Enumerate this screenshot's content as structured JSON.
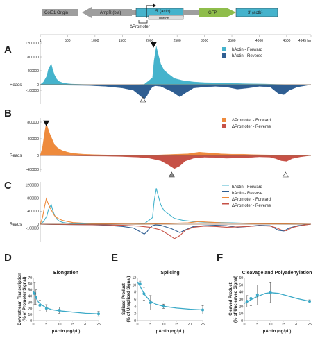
{
  "colors": {
    "actin_forward": "#45b3cc",
    "actin_reverse": "#2f5e92",
    "promoter_forward": "#ee8a3c",
    "promoter_reverse": "#c65146",
    "gfp_box": "#8fbd4b",
    "actb_box": "#45b3cc",
    "gray_box": "#9e9e9e",
    "line_fit": "#3aa9c7"
  },
  "map": {
    "labels": [
      "ColE1 Origin",
      "AmpR (bla)",
      "5' (actb)",
      "1Intron",
      "GFP",
      "3' (actb)",
      "ΔPromoter"
    ],
    "ticks": [
      "1",
      "500",
      "1000",
      "1500",
      "2000",
      "2500",
      "3000",
      "3500",
      "4000",
      "4500",
      "4945 bp"
    ]
  },
  "panels": {
    "A": {
      "label": "A",
      "ylabel": "Reads",
      "yticks": [
        "1200000",
        "800000",
        "400000",
        "0",
        "-100000"
      ],
      "legend": [
        "bActin - Forward",
        "bActin - Reverse"
      ]
    },
    "B": {
      "label": "B",
      "ylabel": "Reads",
      "yticks": [
        "800000",
        "400000",
        "0",
        "-400000"
      ],
      "legend": [
        "ΔPromoter - Forward",
        "ΔPromoter - Reverse"
      ]
    },
    "C": {
      "label": "C",
      "ylabel": "Reads",
      "yticks": [
        "1200000",
        "800000",
        "400000",
        "0",
        "-100000"
      ],
      "legend": [
        "bActin - Forward",
        "bActin - Reverse",
        "ΔPromoter - Forward",
        "ΔPromoter - Reverse"
      ]
    }
  },
  "small": {
    "D": {
      "label": "D",
      "title": "Elongation",
      "ylabel": [
        "Downstream Transcription",
        "(% of Promoter Signal)"
      ],
      "xlabel": "pActin (ng/μL)",
      "yticks": [
        "70",
        "60",
        "50",
        "40",
        "30",
        "20",
        "10",
        "0"
      ],
      "xticks": [
        "0",
        "5",
        "10",
        "15",
        "20",
        "25"
      ]
    },
    "E": {
      "label": "E",
      "title": "Splicing",
      "ylabel": [
        "Spliced Product",
        "(% of Unspliced Signal)"
      ],
      "xlabel": "pActin (ng/μL)",
      "yticks": [
        "12",
        "10",
        "8",
        "6",
        "4",
        "2",
        "0"
      ],
      "xticks": [
        "0",
        "5",
        "10",
        "15",
        "20",
        "25"
      ]
    },
    "F": {
      "label": "F",
      "title": "Cleavage and Polyadenylation",
      "ylabel": [
        "Cleaved Product",
        "(% of Uncleaved Signal)"
      ],
      "xlabel": "pActin (ng/μL)",
      "yticks": [
        "60",
        "50",
        "40",
        "30",
        "20",
        "10",
        "0"
      ],
      "xticks": [
        "0",
        "5",
        "10",
        "15",
        "20",
        "25"
      ]
    }
  },
  "chart_data": [
    {
      "type": "line",
      "ylabel": "Reads",
      "xlabel": "",
      "x_range_bp": [
        1,
        4945
      ],
      "panel": "A",
      "series": [
        {
          "name": "bActin - Forward",
          "x": [
            0,
            60,
            120,
            150,
            200,
            230,
            260,
            300,
            350,
            420,
            500,
            560,
            650,
            800,
            950,
            1100,
            1300,
            1500,
            1700,
            1900,
            2050,
            2080,
            2120,
            2150,
            2200,
            2260,
            2350,
            2450,
            2600,
            2800,
            3000,
            3300,
            3500,
            3700,
            3900,
            4100,
            4300,
            4500,
            4700,
            4945
          ],
          "y": [
            0,
            80000,
            250000,
            450000,
            600000,
            420000,
            280000,
            160000,
            90000,
            50000,
            30000,
            20000,
            15000,
            8000,
            4000,
            2000,
            1000,
            0,
            0,
            10000,
            200000,
            700000,
            1100000,
            900000,
            600000,
            420000,
            300000,
            180000,
            120000,
            80000,
            60000,
            50000,
            40000,
            30000,
            25000,
            20000,
            10000,
            5000,
            2000,
            0
          ]
        },
        {
          "name": "bActin - Reverse",
          "x": [
            0,
            200,
            500,
            900,
            1200,
            1500,
            1700,
            1800,
            1900,
            1950,
            2000,
            2050,
            2100,
            2200,
            2400,
            2550,
            2650,
            2800,
            3000,
            3200,
            3400,
            3600,
            3800,
            4000,
            4200,
            4350,
            4450,
            4550,
            4700,
            4945
          ],
          "y": [
            0,
            -5000,
            -10000,
            -15000,
            -30000,
            -60000,
            -100000,
            -180000,
            -260000,
            -200000,
            -100000,
            -40000,
            -20000,
            -30000,
            -120000,
            -220000,
            -150000,
            -60000,
            -40000,
            -30000,
            -40000,
            -80000,
            -60000,
            -30000,
            -40000,
            -160000,
            -180000,
            -100000,
            -40000,
            0
          ]
        }
      ],
      "markers": [
        {
          "type": "filled-triangle",
          "x_bp": 2070
        },
        {
          "type": "open-triangle",
          "x_bp": 1875
        }
      ]
    },
    {
      "type": "line",
      "ylabel": "Reads",
      "x_range_bp": [
        1,
        4945
      ],
      "panel": "B",
      "series": [
        {
          "name": "ΔPromoter - Forward",
          "x": [
            0,
            40,
            80,
            110,
            140,
            180,
            220,
            260,
            320,
            400,
            500,
            600,
            800,
            1000,
            1300,
            1600,
            1900,
            2100,
            2300,
            2500,
            2700,
            2900,
            3100,
            3300,
            3500,
            3700,
            3900,
            4100,
            4300,
            4500,
            4700,
            4945
          ],
          "y": [
            0,
            200000,
            550000,
            780000,
            650000,
            500000,
            380000,
            260000,
            180000,
            120000,
            80000,
            50000,
            30000,
            20000,
            10000,
            5000,
            5000,
            10000,
            20000,
            30000,
            40000,
            80000,
            60000,
            40000,
            30000,
            30000,
            20000,
            15000,
            10000,
            8000,
            4000,
            0
          ]
        },
        {
          "name": "ΔPromoter - Reverse",
          "x": [
            0,
            300,
            600,
            900,
            1200,
            1500,
            1800,
            2000,
            2200,
            2350,
            2450,
            2550,
            2650,
            2800,
            3000,
            3200,
            3400,
            3600,
            3800,
            4000,
            4200,
            4300,
            4400,
            4500,
            4600,
            4750,
            4945
          ],
          "y": [
            0,
            -5000,
            -10000,
            -15000,
            -20000,
            -30000,
            -50000,
            -80000,
            -150000,
            -280000,
            -380000,
            -300000,
            -160000,
            -80000,
            -50000,
            -60000,
            -80000,
            -70000,
            -60000,
            -40000,
            -50000,
            -90000,
            -150000,
            -170000,
            -90000,
            -40000,
            0
          ]
        }
      ],
      "markers": [
        {
          "type": "filled-triangle",
          "x_bp": 110
        },
        {
          "type": "gray-triangle",
          "x_bp": 2400
        },
        {
          "type": "open-triangle",
          "x_bp": 4480
        }
      ]
    },
    {
      "type": "line",
      "ylabel": "Reads",
      "x_range_bp": [
        1,
        4945
      ],
      "panel": "C",
      "series": [
        {
          "name": "bActin - Forward",
          "x": [
            0,
            60,
            120,
            150,
            200,
            230,
            260,
            300,
            350,
            420,
            500,
            560,
            650,
            800,
            950,
            1100,
            1300,
            1500,
            1700,
            1900,
            2050,
            2080,
            2120,
            2150,
            2200,
            2260,
            2350,
            2450,
            2600,
            2800,
            3000,
            3300,
            3500,
            3700,
            3900,
            4100,
            4300,
            4500,
            4700,
            4945
          ],
          "y": [
            0,
            80000,
            250000,
            450000,
            600000,
            420000,
            280000,
            160000,
            90000,
            50000,
            30000,
            20000,
            15000,
            8000,
            4000,
            2000,
            1000,
            0,
            0,
            10000,
            200000,
            700000,
            1100000,
            900000,
            600000,
            420000,
            300000,
            180000,
            120000,
            80000,
            60000,
            50000,
            40000,
            30000,
            25000,
            20000,
            10000,
            5000,
            2000,
            0
          ]
        },
        {
          "name": "bActin - Reverse",
          "x": [
            0,
            200,
            500,
            900,
            1200,
            1500,
            1700,
            1800,
            1900,
            1950,
            2000,
            2050,
            2100,
            2200,
            2400,
            2550,
            2650,
            2800,
            3000,
            3200,
            3400,
            3600,
            3800,
            4000,
            4200,
            4350,
            4450,
            4550,
            4700,
            4945
          ],
          "y": [
            0,
            -5000,
            -10000,
            -15000,
            -30000,
            -60000,
            -100000,
            -180000,
            -260000,
            -200000,
            -100000,
            -40000,
            -20000,
            -30000,
            -120000,
            -220000,
            -150000,
            -60000,
            -40000,
            -30000,
            -40000,
            -80000,
            -60000,
            -30000,
            -40000,
            -160000,
            -180000,
            -100000,
            -40000,
            0
          ]
        },
        {
          "name": "ΔPromoter - Forward",
          "x": [
            0,
            40,
            80,
            110,
            140,
            180,
            220,
            260,
            320,
            400,
            500,
            600,
            800,
            1000,
            1300,
            1600,
            1900,
            2100,
            2300,
            2500,
            2700,
            2900,
            3100,
            3300,
            3500,
            3700,
            3900,
            4100,
            4300,
            4500,
            4700,
            4945
          ],
          "y": [
            0,
            200000,
            550000,
            780000,
            650000,
            500000,
            380000,
            260000,
            180000,
            120000,
            80000,
            50000,
            30000,
            20000,
            10000,
            5000,
            5000,
            10000,
            20000,
            30000,
            40000,
            80000,
            60000,
            40000,
            30000,
            30000,
            20000,
            15000,
            10000,
            8000,
            4000,
            0
          ]
        },
        {
          "name": "ΔPromoter - Reverse",
          "x": [
            0,
            300,
            600,
            900,
            1200,
            1500,
            1800,
            2000,
            2200,
            2350,
            2450,
            2550,
            2650,
            2800,
            3000,
            3200,
            3400,
            3600,
            3800,
            4000,
            4200,
            4300,
            4400,
            4500,
            4600,
            4750,
            4945
          ],
          "y": [
            0,
            -5000,
            -10000,
            -15000,
            -20000,
            -30000,
            -50000,
            -80000,
            -150000,
            -280000,
            -380000,
            -300000,
            -160000,
            -80000,
            -50000,
            -60000,
            -80000,
            -70000,
            -60000,
            -40000,
            -50000,
            -90000,
            -150000,
            -170000,
            -90000,
            -40000,
            0
          ]
        }
      ]
    },
    {
      "type": "scatter",
      "panel": "D",
      "title": "Elongation",
      "xlabel": "pActin (ng/μL)",
      "ylabel": "Downstream Transcription (% of Promoter Signal)",
      "xlim": [
        0,
        25
      ],
      "ylim": [
        0,
        70
      ],
      "points": [
        {
          "x": 0.5,
          "y": 44,
          "err": 18
        },
        {
          "x": 1,
          "y": 38,
          "err": 12
        },
        {
          "x": 2.5,
          "y": 25,
          "err": 8
        },
        {
          "x": 5,
          "y": 20,
          "err": 6
        },
        {
          "x": 10,
          "y": 17,
          "err": 5
        },
        {
          "x": 25,
          "y": 11,
          "err": 4
        }
      ],
      "fit": {
        "x": [
          0,
          1,
          2,
          3,
          5,
          7,
          10,
          15,
          20,
          25
        ],
        "y": [
          48,
          37,
          30,
          26,
          21,
          18,
          16,
          14,
          12,
          11
        ]
      }
    },
    {
      "type": "scatter",
      "panel": "E",
      "title": "Splicing",
      "xlabel": "pActin (ng/μL)",
      "ylabel": "Spliced Product (% of Unspliced Signal)",
      "xlim": [
        0,
        25
      ],
      "ylim": [
        0,
        12
      ],
      "points": [
        {
          "x": 1,
          "y": 10.2,
          "err": 0.8
        },
        {
          "x": 2.5,
          "y": 7.5,
          "err": 1.8
        },
        {
          "x": 5,
          "y": 5,
          "err": 2
        },
        {
          "x": 10,
          "y": 4,
          "err": 0.6
        },
        {
          "x": 25,
          "y": 3,
          "err": 1.2
        }
      ],
      "fit": {
        "x": [
          0,
          1,
          2,
          3,
          5,
          7,
          10,
          15,
          20,
          25
        ],
        "y": [
          10.8,
          9.6,
          8.2,
          7,
          5.4,
          4.6,
          4,
          3.5,
          3.2,
          3
        ]
      }
    },
    {
      "type": "scatter",
      "panel": "F",
      "title": "Cleavage and Polyadenylation",
      "xlabel": "pActin (ng/μL)",
      "ylabel": "Cleaved Product (% of Uncleaved Signal)",
      "xlim": [
        0,
        25
      ],
      "ylim": [
        0,
        60
      ],
      "points": [
        {
          "x": 1,
          "y": 27,
          "err": 8
        },
        {
          "x": 2.5,
          "y": 31,
          "err": 10
        },
        {
          "x": 5,
          "y": 36,
          "err": 14
        },
        {
          "x": 10,
          "y": 39,
          "err": 14
        },
        {
          "x": 25,
          "y": 27,
          "err": 2
        }
      ],
      "fit": {
        "x": [
          0,
          2,
          4,
          6,
          8,
          10,
          13,
          16,
          20,
          25
        ],
        "y": [
          24,
          28,
          32,
          35,
          38,
          39,
          38,
          35,
          31,
          27
        ]
      }
    }
  ]
}
